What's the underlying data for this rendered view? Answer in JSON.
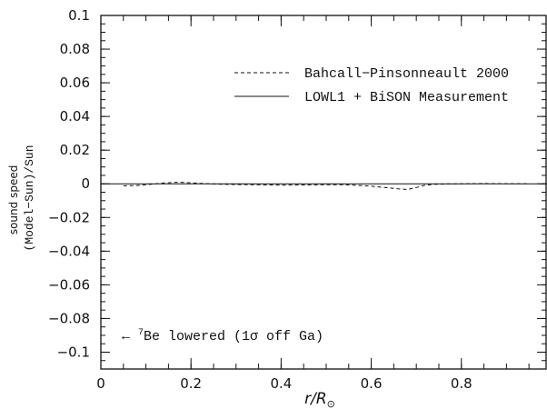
{
  "chart_data": {
    "type": "line",
    "ylabel_line1": "sound speed",
    "ylabel_line2": "(Model−Sun)/Sun",
    "xlabel_main": "r/R",
    "xlabel_sub": "⊙",
    "xlim": [
      0,
      0.99
    ],
    "ylim": [
      -0.11,
      0.1
    ],
    "x_ticks": [
      0,
      0.2,
      0.4,
      0.6,
      0.8
    ],
    "x_tick_labels": [
      "0",
      "0.2",
      "0.4",
      "0.6",
      "0.8"
    ],
    "y_ticks": [
      0.1,
      0.08,
      0.06,
      0.04,
      0.02,
      0,
      -0.02,
      -0.04,
      -0.06,
      -0.08,
      -0.1
    ],
    "y_tick_labels": [
      "0.1",
      "0.08",
      "0.06",
      "0.04",
      "0.02",
      "0",
      "−0.02",
      "−0.04",
      "−0.06",
      "−0.08",
      "−0.1"
    ],
    "series": [
      {
        "name": "Bahcall−Pinsonneault 2000",
        "style": "dashed",
        "color": "#111111",
        "x": [
          0.05,
          0.08,
          0.11,
          0.14,
          0.17,
          0.19,
          0.22,
          0.26,
          0.3,
          0.35,
          0.4,
          0.45,
          0.5,
          0.54,
          0.57,
          0.6,
          0.63,
          0.66,
          0.68,
          0.7,
          0.72,
          0.74,
          0.77,
          0.8,
          0.85,
          0.9,
          0.95
        ],
        "y": [
          -0.0012,
          -0.001,
          -0.0003,
          0.0005,
          0.0009,
          0.0008,
          0.0003,
          -0.0002,
          -0.0004,
          -0.0006,
          -0.0008,
          -0.0007,
          -0.0005,
          -0.0006,
          -0.0009,
          -0.0014,
          -0.0022,
          -0.003,
          -0.0033,
          -0.0022,
          -0.0008,
          -0.0003,
          -0.0001,
          0.0,
          0.0002,
          0.0001,
          0.0
        ]
      },
      {
        "name": "LOWL1 + BiSON Measurement",
        "style": "solid",
        "color": "#111111",
        "x": [
          0,
          0.99
        ],
        "y": [
          0,
          0
        ]
      }
    ],
    "legend_position": "top-right",
    "annotation": {
      "prefix": "← ",
      "sup": "7",
      "text": "Be lowered (1σ off Ga)",
      "x": 0.05,
      "y": -0.092
    }
  }
}
